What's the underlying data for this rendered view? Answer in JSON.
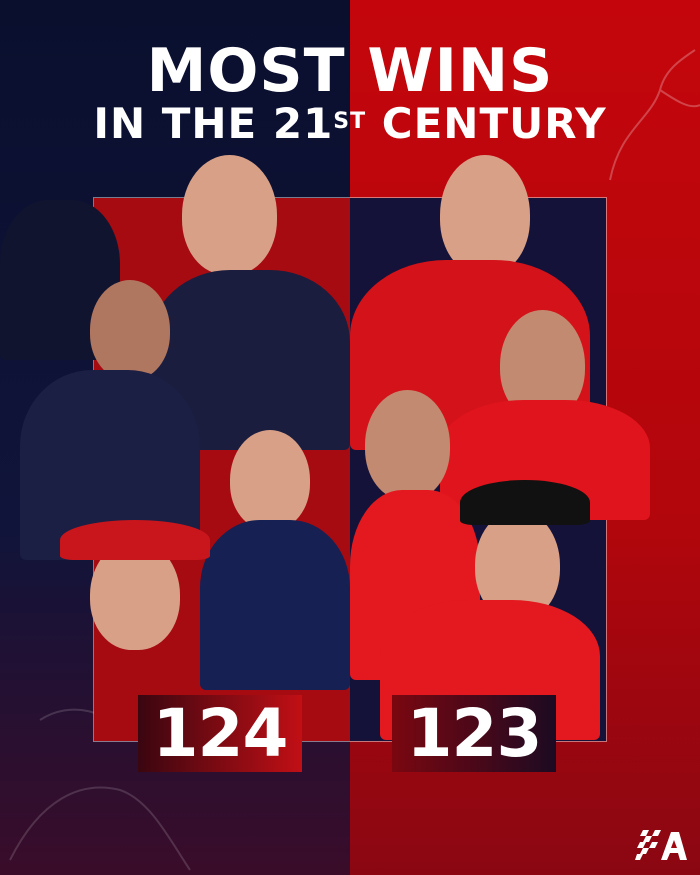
{
  "title": {
    "line1": "MOST WINS",
    "line2_pre": "IN THE 21",
    "line2_sup": "ST",
    "line2_post": " CENTURY"
  },
  "teams": [
    {
      "side": "left",
      "wins": "124",
      "color": "#0a0f2e",
      "accent": "#c10f15"
    },
    {
      "side": "right",
      "wins": "123",
      "color": "#c4060c",
      "accent": "#1c0a22"
    }
  ],
  "logo": {
    "text": "A",
    "icon": "checkered-flag-logo"
  }
}
